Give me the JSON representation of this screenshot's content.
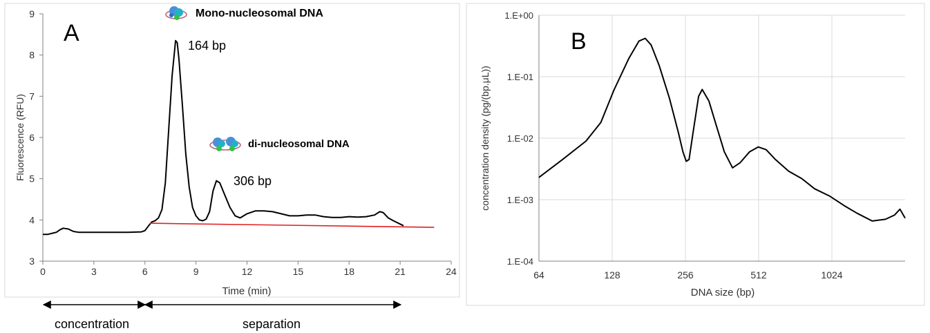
{
  "chart_data": [
    {
      "type": "line",
      "panel_label": "A",
      "xlabel": "Time (min)",
      "ylabel": "Fluorescence (RFU)",
      "xlim": [
        0,
        24
      ],
      "ylim": [
        3,
        9
      ],
      "xticks": [
        0,
        3,
        6,
        9,
        12,
        15,
        18,
        21,
        24
      ],
      "yticks": [
        3,
        4,
        5,
        6,
        7,
        8,
        9
      ],
      "grid": false,
      "series": [
        {
          "color": "#000000",
          "x": [
            0,
            0.3,
            0.6,
            0.8,
            1.0,
            1.2,
            1.5,
            1.8,
            2.1,
            2.4,
            3,
            4,
            5,
            5.8,
            6.0,
            6.2,
            6.4,
            6.6,
            6.8,
            7.0,
            7.2,
            7.4,
            7.6,
            7.8,
            7.9,
            8.0,
            8.2,
            8.4,
            8.6,
            8.8,
            9.0,
            9.2,
            9.4,
            9.6,
            9.8,
            10.0,
            10.2,
            10.4,
            10.6,
            10.8,
            11.0,
            11.3,
            11.6,
            12.0,
            12.5,
            13.0,
            13.5,
            14.0,
            14.5,
            15.0,
            15.5,
            16.0,
            16.5,
            17.0,
            17.5,
            18.0,
            18.5,
            19.0,
            19.5,
            19.8,
            20.0,
            20.3,
            20.6,
            21.0,
            21.2
          ],
          "y": [
            3.65,
            3.65,
            3.68,
            3.7,
            3.76,
            3.8,
            3.78,
            3.72,
            3.7,
            3.7,
            3.7,
            3.7,
            3.7,
            3.71,
            3.74,
            3.85,
            3.95,
            3.98,
            4.05,
            4.25,
            4.9,
            6.2,
            7.5,
            8.35,
            8.3,
            7.9,
            6.8,
            5.6,
            4.8,
            4.3,
            4.1,
            4.0,
            3.98,
            4.02,
            4.2,
            4.7,
            4.95,
            4.9,
            4.7,
            4.5,
            4.3,
            4.1,
            4.05,
            4.15,
            4.22,
            4.22,
            4.2,
            4.15,
            4.1,
            4.1,
            4.12,
            4.12,
            4.08,
            4.06,
            4.06,
            4.08,
            4.07,
            4.08,
            4.12,
            4.2,
            4.18,
            4.05,
            3.98,
            3.9,
            3.86
          ]
        },
        {
          "color": "#e02020",
          "x": [
            6.3,
            23.0
          ],
          "y": [
            3.92,
            3.82
          ]
        }
      ],
      "annotations": {
        "peak1_title": "Mono-nucleosomal DNA",
        "peak1_size": "164 bp",
        "peak2_title": "di-nucleosomal DNA",
        "peak2_size": "306 bp",
        "phase1": "concentration",
        "phase2": "separation"
      }
    },
    {
      "type": "line",
      "panel_label": "B",
      "xlabel": "DNA size (bp)",
      "ylabel": "concentration density (pg/(bp.μL))",
      "x_scale": "log2",
      "y_scale": "log10",
      "xlim": [
        64,
        2048
      ],
      "ylim": [
        0.0001,
        1
      ],
      "xticks": [
        64,
        128,
        256,
        512,
        1024
      ],
      "xtick_labels": [
        "64",
        "128",
        "256",
        "512",
        "1024"
      ],
      "yticks": [
        0.0001,
        0.001,
        0.01,
        0.1,
        1
      ],
      "ytick_labels": [
        "1.E-04",
        "1.E-03",
        "1.E-02",
        "1.E-01",
        "1.E+00"
      ],
      "grid": true,
      "series": [
        {
          "color": "#000000",
          "x": [
            64,
            80,
            100,
            115,
            130,
            150,
            165,
            175,
            185,
            200,
            220,
            240,
            250,
            258,
            265,
            275,
            290,
            300,
            320,
            340,
            370,
            400,
            430,
            470,
            510,
            550,
            600,
            680,
            770,
            870,
            1000,
            1150,
            1300,
            1500,
            1700,
            1850,
            1950,
            2048
          ],
          "y": [
            0.0023,
            0.0045,
            0.009,
            0.018,
            0.06,
            0.2,
            0.38,
            0.42,
            0.33,
            0.15,
            0.045,
            0.012,
            0.006,
            0.0042,
            0.0045,
            0.012,
            0.048,
            0.062,
            0.04,
            0.018,
            0.006,
            0.0033,
            0.004,
            0.006,
            0.0072,
            0.0065,
            0.0045,
            0.0029,
            0.0022,
            0.0015,
            0.00115,
            0.0008,
            0.0006,
            0.00045,
            0.00048,
            0.00056,
            0.0007,
            0.0005
          ]
        }
      ]
    }
  ]
}
